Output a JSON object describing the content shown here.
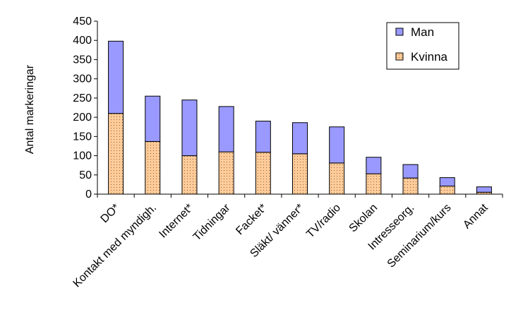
{
  "chart_data": {
    "type": "bar",
    "stacked": true,
    "title": "",
    "xlabel": "",
    "ylabel": "Antal markeringar",
    "ylim": [
      0,
      450
    ],
    "yticks": [
      0,
      50,
      100,
      150,
      200,
      250,
      300,
      350,
      400,
      450
    ],
    "grid": false,
    "legend": "top-right",
    "categories": [
      "DO*",
      "Kontakt med myndigh.",
      "Internet*",
      "Tidningar",
      "Facket*",
      "Släkt/ vänner*",
      "TV/radio",
      "Skolan",
      "Intresseorg.",
      "Seminarium/kurs",
      "Annat"
    ],
    "series": [
      {
        "name": "Kvinna",
        "color": "#FFCC99",
        "pattern": "dotted",
        "values": [
          210,
          137,
          100,
          110,
          109,
          105,
          81,
          53,
          42,
          21,
          5
        ]
      },
      {
        "name": "Man",
        "color": "#9999FF",
        "values": [
          188,
          118,
          145,
          118,
          81,
          81,
          94,
          43,
          35,
          22,
          14
        ]
      }
    ]
  }
}
